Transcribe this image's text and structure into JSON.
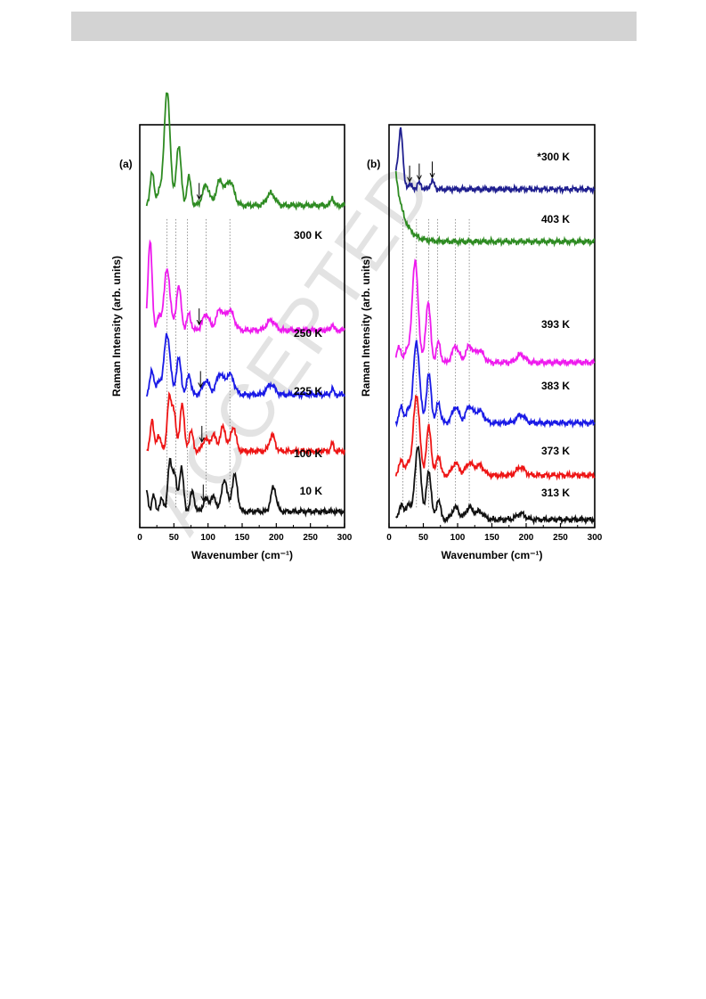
{
  "page": {
    "watermark": "ACCEPTED"
  },
  "chart_data": [
    {
      "type": "line",
      "panel_label": "(a)",
      "xlabel": "Wavenumber (cm⁻¹)",
      "ylabel": "Raman Intensity (arb. units)",
      "xlim": [
        0,
        300
      ],
      "x_ticks": [
        0,
        50,
        100,
        150,
        200,
        250,
        300
      ],
      "grid": false,
      "vertical_guides_x": [
        40,
        53,
        70,
        97,
        132
      ],
      "series": [
        {
          "name": "300 K",
          "color": "#2e8b22",
          "offset": 0.8,
          "peaks": [
            [
              18,
              0.08,
              3
            ],
            [
              28,
              0.03,
              3
            ],
            [
              40,
              0.28,
              4.5
            ],
            [
              57,
              0.15,
              3.5
            ],
            [
              72,
              0.07,
              3
            ],
            [
              97,
              0.05,
              5
            ],
            [
              117,
              0.06,
              5
            ],
            [
              132,
              0.06,
              6
            ],
            [
              192,
              0.03,
              6
            ],
            [
              282,
              0.02,
              2
            ]
          ],
          "arrow_x": 87
        },
        {
          "name": "250 K",
          "color": "#ee1bee",
          "offset": 0.49,
          "peaks": [
            [
              15,
              0.22,
              3
            ],
            [
              28,
              0.03,
              3
            ],
            [
              40,
              0.15,
              4.5
            ],
            [
              57,
              0.11,
              3.5
            ],
            [
              72,
              0.04,
              3
            ],
            [
              97,
              0.04,
              5
            ],
            [
              117,
              0.05,
              5
            ],
            [
              132,
              0.05,
              6
            ],
            [
              192,
              0.025,
              6
            ],
            [
              282,
              0.015,
              2
            ]
          ],
          "arrow_x": 87
        },
        {
          "name": "225 K",
          "color": "#1a1ae6",
          "offset": 0.33,
          "peaks": [
            [
              18,
              0.06,
              3
            ],
            [
              28,
              0.03,
              3
            ],
            [
              40,
              0.15,
              4.5
            ],
            [
              57,
              0.09,
              3.5
            ],
            [
              72,
              0.05,
              3
            ],
            [
              97,
              0.035,
              5
            ],
            [
              117,
              0.05,
              5
            ],
            [
              132,
              0.05,
              6
            ],
            [
              192,
              0.025,
              6
            ],
            [
              282,
              0.015,
              2
            ]
          ],
          "arrow_x": 89
        },
        {
          "name": "100 K",
          "color": "#ee1515",
          "offset": 0.19,
          "peaks": [
            [
              18,
              0.08,
              2.5
            ],
            [
              28,
              0.04,
              3
            ],
            [
              43,
              0.13,
              3
            ],
            [
              50,
              0.1,
              3
            ],
            [
              62,
              0.12,
              3
            ],
            [
              75,
              0.05,
              3
            ],
            [
              96,
              0.03,
              4
            ],
            [
              108,
              0.04,
              4
            ],
            [
              122,
              0.06,
              4
            ],
            [
              137,
              0.06,
              4
            ],
            [
              194,
              0.04,
              4
            ],
            [
              282,
              0.02,
              2
            ]
          ],
          "arrow_x": 91
        },
        {
          "name": "10 K",
          "color": "#111111",
          "offset": 0.04,
          "peaks": [
            [
              10,
              0.05,
              2
            ],
            [
              20,
              0.04,
              2.5
            ],
            [
              32,
              0.03,
              3
            ],
            [
              44,
              0.12,
              3
            ],
            [
              51,
              0.09,
              3
            ],
            [
              61,
              0.11,
              3
            ],
            [
              77,
              0.05,
              3
            ],
            [
              97,
              0.03,
              4
            ],
            [
              108,
              0.035,
              4
            ],
            [
              124,
              0.08,
              4
            ],
            [
              139,
              0.09,
              4
            ],
            [
              196,
              0.06,
              4
            ]
          ],
          "arrow_x": 93
        }
      ]
    },
    {
      "type": "line",
      "panel_label": "(b)",
      "xlabel": "Wavenumber (cm⁻¹)",
      "ylabel": "Raman Intensity (arb. units)",
      "xlim": [
        0,
        300
      ],
      "x_ticks": [
        0,
        50,
        100,
        150,
        200,
        250,
        300
      ],
      "grid": false,
      "vertical_guides_x": [
        20,
        40,
        58,
        71,
        97,
        117
      ],
      "series": [
        {
          "name": "*300 K",
          "color": "#1f1f8f",
          "offset": 0.84,
          "baseline_drop": 0.0,
          "peaks": [
            [
              17,
              0.14,
              3
            ],
            [
              30,
              0.01,
              3
            ],
            [
              44,
              0.015,
              3
            ],
            [
              63,
              0.02,
              3
            ]
          ],
          "arrows_x": [
            30,
            44,
            63
          ]
        },
        {
          "name": "403 K",
          "color": "#2e8b22",
          "offset": 0.71,
          "rayleigh": 0.17,
          "peaks": []
        },
        {
          "name": "393 K",
          "color": "#ee1bee",
          "offset": 0.41,
          "peaks": [
            [
              14,
              0.04,
              3
            ],
            [
              25,
              0.03,
              3
            ],
            [
              38,
              0.25,
              4.5
            ],
            [
              57,
              0.15,
              3.5
            ],
            [
              72,
              0.05,
              3
            ],
            [
              97,
              0.04,
              5
            ],
            [
              117,
              0.04,
              5
            ],
            [
              132,
              0.03,
              6
            ],
            [
              192,
              0.02,
              6
            ]
          ]
        },
        {
          "name": "383 K",
          "color": "#1a1ae6",
          "offset": 0.26,
          "peaks": [
            [
              18,
              0.04,
              3
            ],
            [
              28,
              0.03,
              3
            ],
            [
              40,
              0.2,
              4.5
            ],
            [
              58,
              0.12,
              3.5
            ],
            [
              72,
              0.05,
              3
            ],
            [
              97,
              0.04,
              5
            ],
            [
              117,
              0.04,
              5
            ],
            [
              132,
              0.03,
              6
            ],
            [
              192,
              0.02,
              6
            ]
          ]
        },
        {
          "name": "373 K",
          "color": "#ee1515",
          "offset": 0.13,
          "peaks": [
            [
              18,
              0.04,
              3
            ],
            [
              28,
              0.03,
              3
            ],
            [
              40,
              0.2,
              4.5
            ],
            [
              58,
              0.12,
              3.5
            ],
            [
              72,
              0.05,
              3
            ],
            [
              97,
              0.03,
              5
            ],
            [
              117,
              0.03,
              5
            ],
            [
              132,
              0.025,
              6
            ],
            [
              192,
              0.02,
              6
            ]
          ]
        },
        {
          "name": "313 K",
          "color": "#111111",
          "offset": 0.02,
          "peaks": [
            [
              18,
              0.04,
              3
            ],
            [
              28,
              0.04,
              3
            ],
            [
              42,
              0.18,
              4.5
            ],
            [
              58,
              0.12,
              3.5
            ],
            [
              72,
              0.05,
              3
            ],
            [
              97,
              0.03,
              5
            ],
            [
              117,
              0.03,
              5
            ],
            [
              132,
              0.02,
              6
            ],
            [
              192,
              0.015,
              6
            ]
          ]
        }
      ]
    }
  ]
}
